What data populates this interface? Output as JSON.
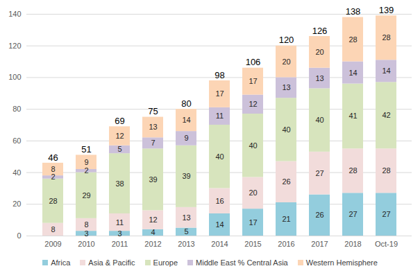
{
  "chart_data": {
    "type": "bar",
    "stacked": true,
    "data_labels": true,
    "grid": true,
    "legend": "bottom",
    "categories": [
      "2009",
      "2010",
      "2011",
      "2012",
      "2013",
      "2014",
      "2015",
      "2016",
      "2017",
      "2018",
      "Oct-19"
    ],
    "series": [
      {
        "name": "Africa",
        "color": "#93cddd",
        "values": [
          0,
          3,
          3,
          4,
          5,
          14,
          17,
          21,
          26,
          27,
          27
        ]
      },
      {
        "name": "Asia & Pacific",
        "color": "#f2dcdb",
        "values": [
          8,
          8,
          11,
          12,
          13,
          16,
          20,
          26,
          27,
          28,
          28
        ]
      },
      {
        "name": "Europe",
        "color": "#d7e4bd",
        "values": [
          28,
          29,
          38,
          39,
          39,
          40,
          40,
          40,
          40,
          41,
          42
        ]
      },
      {
        "name": "Middle East % Central Asia",
        "color": "#ccc1da",
        "values": [
          2,
          2,
          5,
          7,
          9,
          11,
          12,
          13,
          13,
          14,
          14
        ]
      },
      {
        "name": "Western Hemisphere",
        "color": "#fcd5b5",
        "values": [
          8,
          9,
          12,
          13,
          14,
          17,
          17,
          20,
          20,
          28,
          28
        ]
      }
    ],
    "totals": [
      46,
      51,
      69,
      75,
      80,
      98,
      106,
      120,
      126,
      138,
      139
    ],
    "ylim": [
      0,
      140
    ],
    "yticks": [
      0,
      20,
      40,
      60,
      80,
      100,
      120,
      140
    ]
  }
}
